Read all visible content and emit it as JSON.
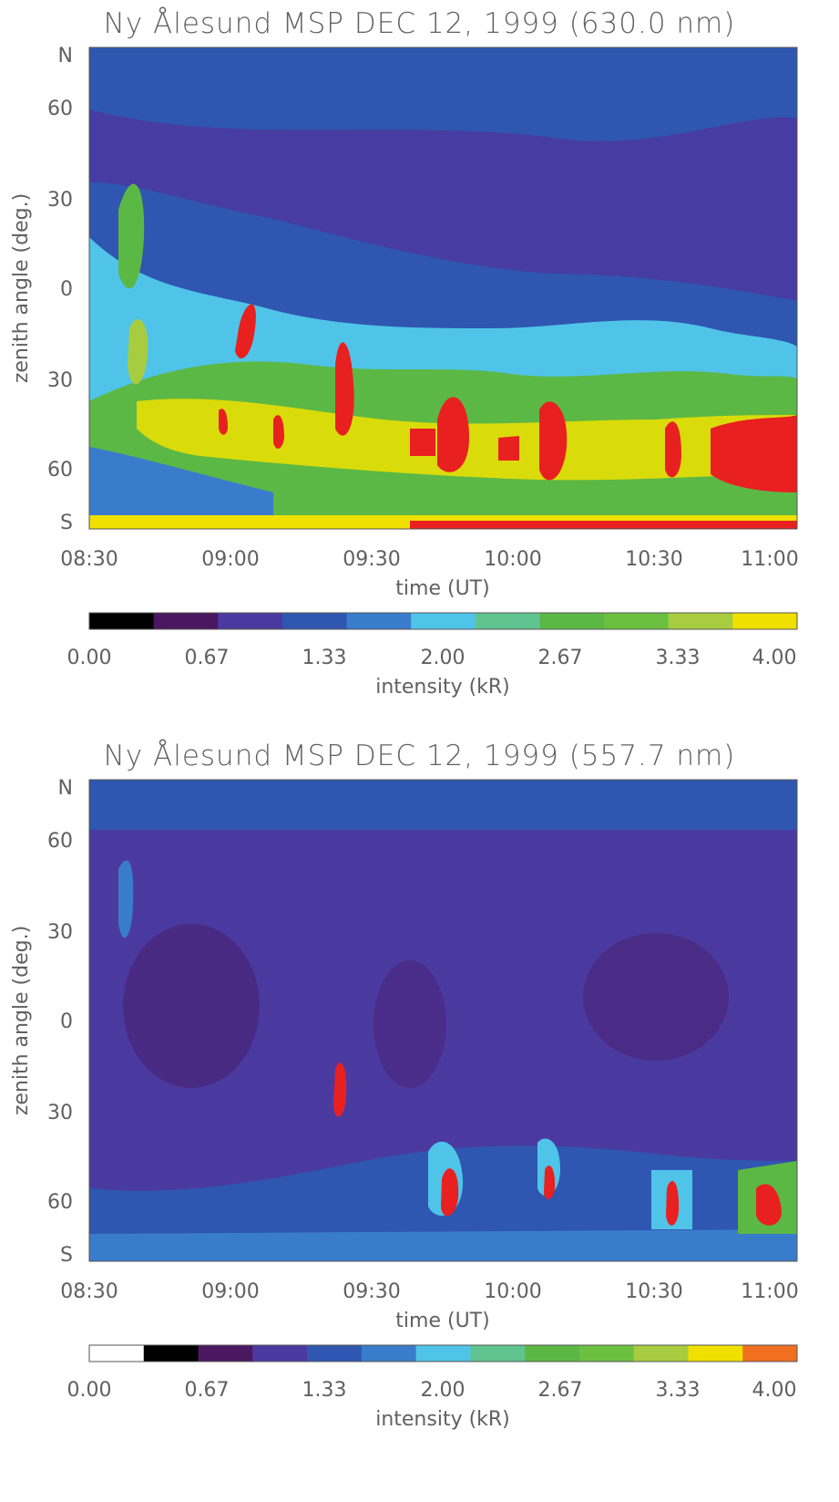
{
  "chart_data": [
    {
      "type": "heatmap",
      "title": "Ny Ålesund MSP DEC 12, 1999 (630.0 nm)",
      "xlabel": "time (UT)",
      "ylabel": "zenith angle (deg.)",
      "x_ticks": [
        "08:30",
        "09:00",
        "09:30",
        "10:00",
        "10:30",
        "11:00"
      ],
      "y_ticks": [
        "N",
        "60",
        "30",
        "0",
        "30",
        "60",
        "S"
      ],
      "ylim": [
        "N",
        "S"
      ],
      "colorbar": {
        "label": "intensity (kR)",
        "ticks": [
          "0.00",
          "0.67",
          "1.33",
          "2.00",
          "2.67",
          "3.33",
          "4.00"
        ],
        "colors": [
          "#000000",
          "#4a1860",
          "#4a3aa0",
          "#2f56b0",
          "#3a7ccc",
          "#4fc4e8",
          "#5fc490",
          "#5cb845",
          "#6cc040",
          "#a8cc40",
          "#f0e000"
        ]
      },
      "features": [
        {
          "time": "08:45",
          "zenith_deg": 20,
          "intensity_kR": 2.9
        },
        {
          "time": "09:05",
          "zenith_deg": -20,
          "intensity_kR": 4.0
        },
        {
          "time": "09:24",
          "zenith_deg": -40,
          "intensity_kR": 4.0
        },
        {
          "time": "09:48",
          "zenith_deg": -50,
          "intensity_kR": 4.0
        },
        {
          "time": "10:08",
          "zenith_deg": -50,
          "intensity_kR": 4.0
        },
        {
          "time": "10:33",
          "zenith_deg": -55,
          "intensity_kR": 3.8
        },
        {
          "time": "10:55",
          "zenith_deg": -55,
          "intensity_kR": 4.0
        }
      ]
    },
    {
      "type": "heatmap",
      "title": "Ny Ålesund MSP DEC 12, 1999 (557.7 nm)",
      "xlabel": "time (UT)",
      "ylabel": "zenith angle (deg.)",
      "x_ticks": [
        "08:30",
        "09:00",
        "09:30",
        "10:00",
        "10:30",
        "11:00"
      ],
      "y_ticks": [
        "N",
        "60",
        "30",
        "0",
        "30",
        "60",
        "S"
      ],
      "ylim": [
        "N",
        "S"
      ],
      "colorbar": {
        "label": "intensity (kR)",
        "ticks": [
          "0.00",
          "0.67",
          "1.33",
          "2.00",
          "2.67",
          "3.33",
          "4.00"
        ],
        "colors": [
          "#ffffff",
          "#000000",
          "#4a1860",
          "#4a3aa0",
          "#2f56b0",
          "#3a7ccc",
          "#4fc4e8",
          "#5fc490",
          "#5cb845",
          "#6cc040",
          "#a8cc40",
          "#f0e000",
          "#f07020"
        ]
      },
      "features": [
        {
          "time": "09:24",
          "zenith_deg": -43,
          "intensity_kR": 4.0
        },
        {
          "time": "09:50",
          "zenith_deg": -58,
          "intensity_kR": 4.0
        },
        {
          "time": "10:08",
          "zenith_deg": -55,
          "intensity_kR": 4.0
        },
        {
          "time": "10:35",
          "zenith_deg": -60,
          "intensity_kR": 4.0
        },
        {
          "time": "10:58",
          "zenith_deg": -60,
          "intensity_kR": 4.0
        }
      ]
    }
  ]
}
